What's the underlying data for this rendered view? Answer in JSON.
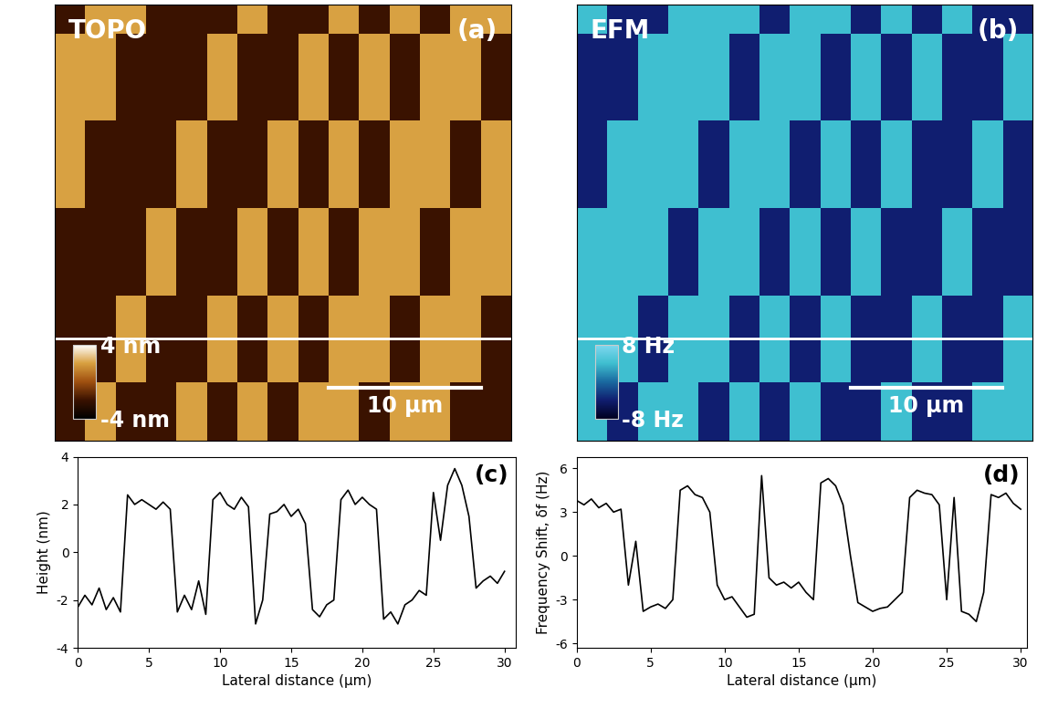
{
  "chart_data": [
    {
      "type": "heatmap",
      "title": "TOPO",
      "panel_label": "(a)",
      "xlim": [
        0,
        30
      ],
      "ylim": [
        0,
        30
      ],
      "tick_labels": false,
      "cells": [
        [
          -2,
          2,
          2,
          -2,
          -2,
          -2,
          2,
          -2,
          -2,
          2,
          -2,
          2,
          -2,
          2,
          2
        ],
        [
          2,
          2,
          -2,
          -2,
          -2,
          2,
          -2,
          -2,
          2,
          -2,
          2,
          -2,
          2,
          2,
          -2
        ],
        [
          2,
          2,
          -2,
          -2,
          -2,
          2,
          -2,
          -2,
          2,
          -2,
          2,
          -2,
          2,
          2,
          -2
        ],
        [
          2,
          2,
          -2,
          -2,
          -2,
          2,
          -2,
          -2,
          2,
          -2,
          2,
          -2,
          2,
          2,
          -2
        ],
        [
          2,
          -2,
          -2,
          -2,
          2,
          -2,
          -2,
          2,
          -2,
          2,
          -2,
          2,
          2,
          -2,
          2
        ],
        [
          2,
          -2,
          -2,
          -2,
          2,
          -2,
          -2,
          2,
          -2,
          2,
          -2,
          2,
          2,
          -2,
          2
        ],
        [
          2,
          -2,
          -2,
          -2,
          2,
          -2,
          -2,
          2,
          -2,
          2,
          -2,
          2,
          2,
          -2,
          2
        ],
        [
          -2,
          -2,
          -2,
          2,
          -2,
          -2,
          2,
          -2,
          2,
          -2,
          2,
          2,
          -2,
          2,
          2
        ],
        [
          -2,
          -2,
          -2,
          2,
          -2,
          -2,
          2,
          -2,
          2,
          -2,
          2,
          2,
          -2,
          2,
          2
        ],
        [
          -2,
          -2,
          -2,
          2,
          -2,
          -2,
          2,
          -2,
          2,
          -2,
          2,
          2,
          -2,
          2,
          2
        ],
        [
          -2,
          -2,
          2,
          -2,
          -2,
          2,
          -2,
          2,
          -2,
          2,
          2,
          -2,
          2,
          2,
          -2
        ],
        [
          -2,
          -2,
          2,
          -2,
          -2,
          2,
          -2,
          2,
          -2,
          2,
          2,
          -2,
          2,
          2,
          -2
        ],
        [
          -2,
          -2,
          2,
          -2,
          -2,
          2,
          -2,
          2,
          -2,
          2,
          2,
          -2,
          2,
          2,
          -2
        ],
        [
          -2,
          2,
          -2,
          -2,
          2,
          -2,
          2,
          -2,
          2,
          2,
          -2,
          2,
          2,
          -2,
          -2
        ],
        [
          -2,
          2,
          -2,
          -2,
          2,
          -2,
          2,
          -2,
          2,
          2,
          -2,
          2,
          2,
          -2,
          -2
        ]
      ],
      "colorbar": {
        "range": [
          -4,
          4
        ],
        "ticks": [
          {
            "value": 4,
            "label": "4 nm"
          },
          {
            "value": -4,
            "label": "-4 nm"
          }
        ]
      },
      "scale_bar": {
        "length": 10,
        "label": "10 µm"
      },
      "profile_line_y": 7
    },
    {
      "type": "heatmap",
      "title": "EFM",
      "panel_label": "(b)",
      "xlim": [
        0,
        30
      ],
      "ylim": [
        0,
        30
      ],
      "tick_labels": false,
      "cells": [
        [
          4,
          -4,
          -4,
          4,
          4,
          4,
          -4,
          4,
          4,
          -4,
          4,
          -4,
          4,
          -4,
          -4
        ],
        [
          -4,
          -4,
          4,
          4,
          4,
          -4,
          4,
          4,
          -4,
          4,
          -4,
          4,
          -4,
          -4,
          4
        ],
        [
          -4,
          -4,
          4,
          4,
          4,
          -4,
          4,
          4,
          -4,
          4,
          -4,
          4,
          -4,
          -4,
          4
        ],
        [
          -4,
          -4,
          4,
          4,
          4,
          -4,
          4,
          4,
          -4,
          4,
          -4,
          4,
          -4,
          -4,
          4
        ],
        [
          -4,
          4,
          4,
          4,
          -4,
          4,
          4,
          -4,
          4,
          -4,
          4,
          -4,
          -4,
          4,
          -4
        ],
        [
          -4,
          4,
          4,
          4,
          -4,
          4,
          4,
          -4,
          4,
          -4,
          4,
          -4,
          -4,
          4,
          -4
        ],
        [
          -4,
          4,
          4,
          4,
          -4,
          4,
          4,
          -4,
          4,
          -4,
          4,
          -4,
          -4,
          4,
          -4
        ],
        [
          4,
          4,
          4,
          -4,
          4,
          4,
          -4,
          4,
          -4,
          4,
          -4,
          -4,
          4,
          -4,
          -4
        ],
        [
          4,
          4,
          4,
          -4,
          4,
          4,
          -4,
          4,
          -4,
          4,
          -4,
          -4,
          4,
          -4,
          -4
        ],
        [
          4,
          4,
          4,
          -4,
          4,
          4,
          -4,
          4,
          -4,
          4,
          -4,
          -4,
          4,
          -4,
          -4
        ],
        [
          4,
          4,
          -4,
          4,
          4,
          -4,
          4,
          -4,
          4,
          -4,
          -4,
          4,
          -4,
          -4,
          4
        ],
        [
          4,
          4,
          -4,
          4,
          4,
          -4,
          4,
          -4,
          4,
          -4,
          -4,
          4,
          -4,
          -4,
          4
        ],
        [
          4,
          4,
          -4,
          4,
          4,
          -4,
          4,
          -4,
          4,
          -4,
          -4,
          4,
          -4,
          -4,
          4
        ],
        [
          4,
          -4,
          4,
          4,
          -4,
          4,
          -4,
          4,
          -4,
          -4,
          4,
          -4,
          -4,
          4,
          4
        ],
        [
          4,
          -4,
          4,
          4,
          -4,
          4,
          -4,
          4,
          -4,
          -4,
          4,
          -4,
          -4,
          4,
          4
        ]
      ],
      "colorbar": {
        "range": [
          -8,
          8
        ],
        "ticks": [
          {
            "value": 8,
            "label": "8 Hz"
          },
          {
            "value": -8,
            "label": "-8 Hz"
          }
        ]
      },
      "scale_bar": {
        "length": 10,
        "label": "10 µm"
      },
      "profile_line_y": 7
    },
    {
      "type": "line",
      "panel_label": "(c)",
      "color": "#000000",
      "xlabel": "Lateral distance (µm)",
      "ylabel": "Height (nm)",
      "xlim": [
        0,
        30.8
      ],
      "ylim": [
        -4,
        4
      ],
      "xticks": [
        0,
        5,
        10,
        15,
        20,
        25,
        30
      ],
      "yticks": [
        -4,
        -2,
        0,
        2,
        4
      ],
      "x": [
        0,
        0.5,
        1,
        1.5,
        2,
        2.5,
        3,
        3.5,
        4,
        4.5,
        5,
        5.5,
        6,
        6.5,
        7,
        7.5,
        8,
        8.5,
        9,
        9.5,
        10,
        10.5,
        11,
        11.5,
        12,
        12.5,
        13,
        13.5,
        14,
        14.5,
        15,
        15.5,
        16,
        16.5,
        17,
        17.5,
        18,
        18.5,
        19,
        19.5,
        20,
        20.5,
        21,
        21.5,
        22,
        22.5,
        23,
        23.5,
        24,
        24.5,
        25,
        25.5,
        26,
        26.5,
        27,
        27.5,
        28,
        28.5,
        29,
        29.5,
        30
      ],
      "values": [
        -2.3,
        -1.8,
        -2.2,
        -1.5,
        -2.4,
        -1.9,
        -2.5,
        2.4,
        2.0,
        2.2,
        2.0,
        1.8,
        2.1,
        1.8,
        -2.5,
        -1.8,
        -2.4,
        -1.2,
        -2.6,
        2.2,
        2.5,
        2.0,
        1.8,
        2.3,
        1.9,
        -3.0,
        -2.0,
        1.6,
        1.7,
        2.0,
        1.5,
        1.8,
        1.2,
        -2.4,
        -2.7,
        -2.2,
        -2.0,
        2.2,
        2.6,
        2.0,
        2.3,
        2.0,
        1.8,
        -2.8,
        -2.5,
        -3.0,
        -2.2,
        -2.0,
        -1.6,
        -1.8,
        2.5,
        0.5,
        2.8,
        3.5,
        2.8,
        1.5,
        -1.5,
        -1.2,
        -1.0,
        -1.3,
        -0.8
      ]
    },
    {
      "type": "line",
      "panel_label": "(d)",
      "color": "#000000",
      "xlabel": "Lateral distance (µm)",
      "ylabel": "Frequency Shift, δf (Hz)",
      "xlim": [
        0,
        30.4
      ],
      "ylim": [
        -6.3,
        6.8
      ],
      "xticks": [
        0,
        5,
        10,
        15,
        20,
        25,
        30
      ],
      "yticks": [
        -6,
        -3,
        0,
        3,
        6
      ],
      "x": [
        0,
        0.5,
        1,
        1.5,
        2,
        2.5,
        3,
        3.5,
        4,
        4.5,
        5,
        5.5,
        6,
        6.5,
        7,
        7.5,
        8,
        8.5,
        9,
        9.5,
        10,
        10.5,
        11,
        11.5,
        12,
        12.5,
        13,
        13.5,
        14,
        14.5,
        15,
        15.5,
        16,
        16.5,
        17,
        17.5,
        18,
        18.5,
        19,
        19.5,
        20,
        20.5,
        21,
        21.5,
        22,
        22.5,
        23,
        23.5,
        24,
        24.5,
        25,
        25.5,
        26,
        26.5,
        27,
        27.5,
        28,
        28.5,
        29,
        29.5,
        30
      ],
      "values": [
        3.8,
        3.5,
        3.9,
        3.3,
        3.6,
        3.0,
        3.2,
        -2.0,
        1.0,
        -3.8,
        -3.5,
        -3.3,
        -3.6,
        -3.0,
        4.5,
        4.8,
        4.2,
        4.0,
        3.0,
        -2.0,
        -3.0,
        -2.8,
        -3.5,
        -4.2,
        -4.0,
        5.5,
        -1.5,
        -2.0,
        -1.8,
        -2.2,
        -1.8,
        -2.5,
        -3.0,
        5.0,
        5.3,
        4.8,
        3.5,
        0.0,
        -3.2,
        -3.5,
        -3.8,
        -3.6,
        -3.5,
        -3.0,
        -2.5,
        4.0,
        4.5,
        4.3,
        4.2,
        3.5,
        -3.0,
        4.0,
        -3.8,
        -4.0,
        -4.5,
        -2.5,
        4.2,
        4.0,
        4.3,
        3.6,
        3.2
      ]
    }
  ]
}
